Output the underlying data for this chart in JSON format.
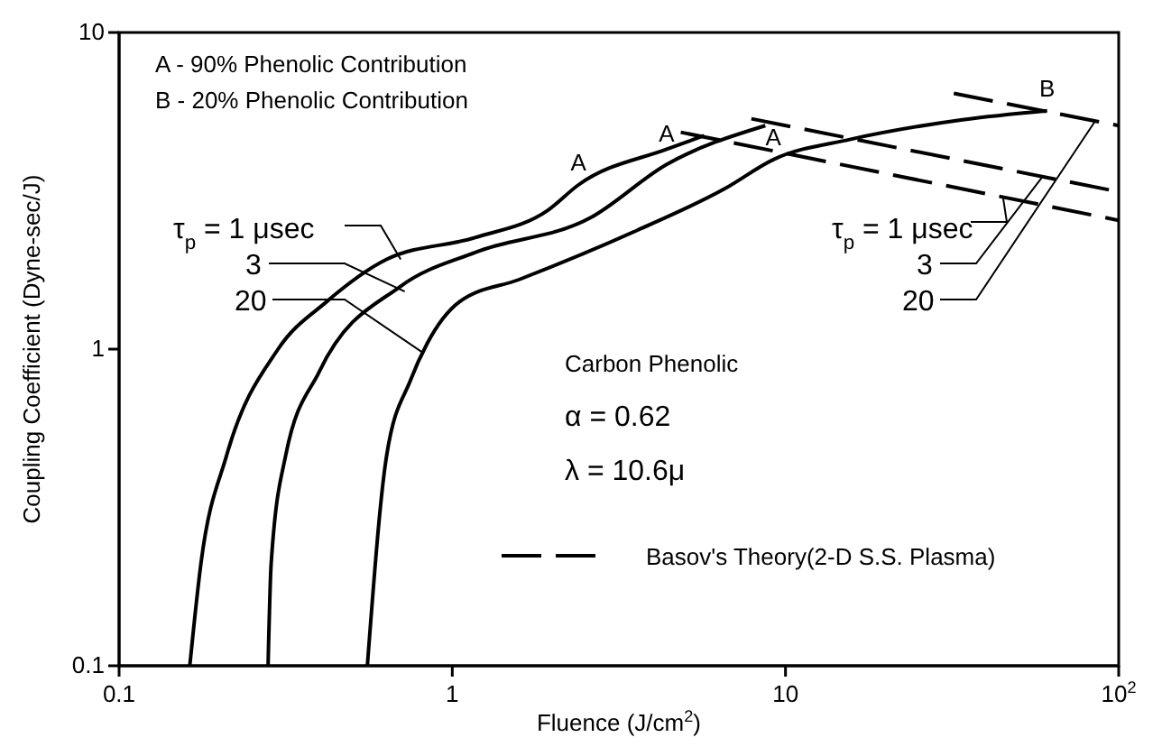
{
  "chart_data": {
    "type": "line",
    "xlabel": "Fluence (J/cm$^{2}$)",
    "ylabel": "Coupling Coefficient (Dyne-sec/J)",
    "log": "xy",
    "xlim": [
      0.1,
      100
    ],
    "xticks": [
      {
        "value": 0.1,
        "label": "0.1"
      },
      1,
      10,
      {
        "value": 100,
        "label": "10$^{2}$"
      }
    ],
    "ylim": [
      0.1,
      10
    ],
    "yticks": [
      {
        "value": 0.1,
        "label": "0.1"
      },
      1,
      10
    ],
    "marker": "none",
    "legend": "right",
    "series": [
      {
        "color": "#000000",
        "line_style": "solid",
        "x": [
          0.163,
          0.176,
          0.21,
          0.3,
          0.419,
          0.635,
          1.17,
          1.94,
          2.39,
          4.4,
          5.7
        ],
        "values": [
          0.1,
          0.21,
          0.46,
          1.0,
          1.41,
          1.92,
          2.25,
          2.75,
          3.3,
          4.28,
          4.72
        ]
      },
      {
        "color": "#000000",
        "line_style": "solid",
        "x": [
          0.28,
          0.286,
          0.316,
          0.399,
          0.7,
          1.17,
          2.6,
          4.4,
          8.7
        ],
        "values": [
          0.1,
          0.21,
          0.46,
          0.85,
          1.58,
          2.02,
          2.6,
          3.83,
          5.08
        ]
      },
      {
        "color": "#000000",
        "line_style": "solid",
        "x": [
          0.556,
          0.635,
          0.75,
          0.84,
          1.05,
          1.59,
          3.58,
          6.6,
          9.2,
          15.7,
          34,
          61
        ],
        "values": [
          0.1,
          0.46,
          0.8,
          1.04,
          1.41,
          1.66,
          2.37,
          3.22,
          3.97,
          4.6,
          5.3,
          5.66
        ]
      },
      {
        "name": "Basov's Theory(2-D S.S. Plasma)",
        "color": "#000000",
        "line_style": "dashed",
        "x": [
          4.85,
          100
        ],
        "values": [
          4.84,
          2.55
        ]
      },
      {
        "color": "#000000",
        "line_style": "dashed",
        "x": [
          7.9,
          100
        ],
        "values": [
          5.34,
          3.14
        ]
      },
      {
        "color": "#000000",
        "line_style": "dashed",
        "x": [
          32,
          100
        ],
        "values": [
          6.42,
          5.08
        ]
      }
    ],
    "annotations": [
      "A - 90% Phenolic Contribution",
      "B - 20% Phenolic Contribution",
      "Carbon Phenolic",
      "α = 0.62",
      "λ = 10.6μ",
      {
        "text": "A",
        "x": 2.39,
        "y": 3.3
      },
      {
        "text": "A",
        "x": 4.4,
        "y": 4.07
      },
      {
        "text": "A",
        "x": 9.2,
        "y": 3.97
      },
      {
        "text": "B",
        "x": 61,
        "y": 5.66
      },
      {
        "text": "τ$_{p}$ = 1 μsec",
        "x": 0.7,
        "y": 1.92
      },
      {
        "text": "3",
        "x": 0.72,
        "y": 1.52
      },
      {
        "text": "20",
        "x": 0.81,
        "y": 0.98
      },
      {
        "text": "τ$_{p}$ = 1 μsec",
        "x": 45,
        "y": 3.0
      },
      {
        "text": "3",
        "x": 59,
        "y": 3.5
      },
      {
        "text": "20",
        "x": 85,
        "y": 5.25
      }
    ]
  }
}
